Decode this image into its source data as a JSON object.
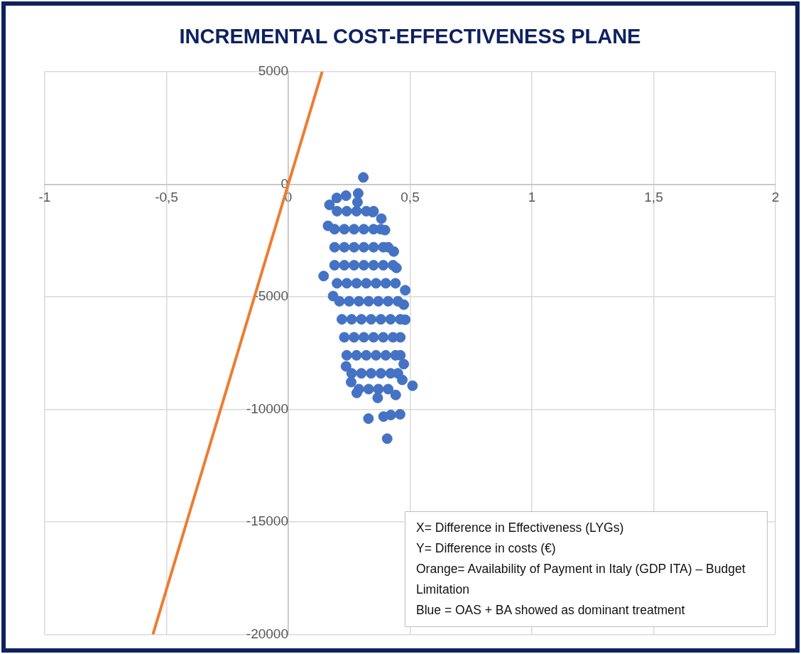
{
  "chart_data": {
    "type": "scatter",
    "title": "INCREMENTAL COST-EFFECTIVENESS PLANE",
    "xlim": [
      -1,
      2
    ],
    "ylim": [
      -20000,
      5000
    ],
    "xticks": [
      -1,
      {
        "value": -0.5,
        "label": "-0,5"
      },
      0,
      {
        "value": 0.5,
        "label": "0,5"
      },
      1,
      {
        "value": 1.5,
        "label": "1,5"
      },
      2
    ],
    "yticks": [
      -20000,
      -15000,
      -10000,
      -5000,
      0,
      5000
    ],
    "grid": true,
    "annotations": [
      "X= Difference in Effectiveness (LYGs)",
      "Y= Difference in costs (€)",
      "Orange= Availability of Payment in Italy (GDP ITA) – Budget Limitation",
      "Blue = OAS + BA showed as dominant treatment"
    ],
    "series": [
      {
        "marker": "circle",
        "color": "#4472c4",
        "x": [
          0.308,
          0.287,
          0.284,
          0.169,
          0.163,
          0.145,
          0.184,
          0.329,
          0.391,
          0.421,
          0.459,
          0.406,
          0.51,
          0.48,
          0.474,
          0.48,
          0.474,
          0.468,
          0.433,
          0.444,
          0.237,
          0.199,
          0.382,
          0.397,
          0.347,
          0.237,
          0.258,
          0.281,
          0.367,
          0.441,
          0.2,
          0.24,
          0.28,
          0.32,
          0.35,
          0.19,
          0.23,
          0.27,
          0.31,
          0.35,
          0.38,
          0.19,
          0.23,
          0.27,
          0.31,
          0.35,
          0.39,
          0.41,
          0.19,
          0.23,
          0.27,
          0.31,
          0.35,
          0.39,
          0.43,
          0.2,
          0.24,
          0.28,
          0.32,
          0.36,
          0.4,
          0.44,
          0.21,
          0.25,
          0.29,
          0.33,
          0.37,
          0.41,
          0.45,
          0.22,
          0.26,
          0.3,
          0.34,
          0.38,
          0.42,
          0.46,
          0.23,
          0.27,
          0.31,
          0.35,
          0.39,
          0.43,
          0.46,
          0.24,
          0.28,
          0.32,
          0.36,
          0.4,
          0.44,
          0.46,
          0.26,
          0.3,
          0.34,
          0.38,
          0.42,
          0.45,
          0.29,
          0.33,
          0.37,
          0.41
        ],
        "values": [
          300,
          -410,
          -800,
          -920,
          -1850,
          -4080,
          -4970,
          -10410,
          -10320,
          -10250,
          -10220,
          -11300,
          -8950,
          -4710,
          -5350,
          -6020,
          -7990,
          -8690,
          -2990,
          -3720,
          -510,
          -610,
          -1530,
          -2040,
          -1240,
          -8090,
          -8790,
          -9270,
          -9490,
          -9360,
          -1200,
          -1200,
          -1200,
          -1200,
          -1200,
          -2000,
          -2000,
          -2000,
          -2000,
          -2000,
          -2000,
          -2800,
          -2800,
          -2800,
          -2800,
          -2800,
          -2800,
          -2800,
          -3600,
          -3600,
          -3600,
          -3600,
          -3600,
          -3600,
          -3600,
          -4400,
          -4400,
          -4400,
          -4400,
          -4400,
          -4400,
          -4400,
          -5200,
          -5200,
          -5200,
          -5200,
          -5200,
          -5200,
          -5200,
          -6000,
          -6000,
          -6000,
          -6000,
          -6000,
          -6000,
          -6000,
          -6800,
          -6800,
          -6800,
          -6800,
          -6800,
          -6800,
          -6800,
          -7600,
          -7600,
          -7600,
          -7600,
          -7600,
          -7600,
          -7600,
          -8400,
          -8400,
          -8400,
          -8400,
          -8400,
          -8400,
          -9100,
          -9100,
          -9100,
          -9100
        ]
      },
      {
        "type": "line",
        "marker": "none",
        "color": "#ed7d31",
        "x": [
          -0.556,
          0.139
        ],
        "values": [
          -20000,
          5000
        ]
      }
    ]
  }
}
